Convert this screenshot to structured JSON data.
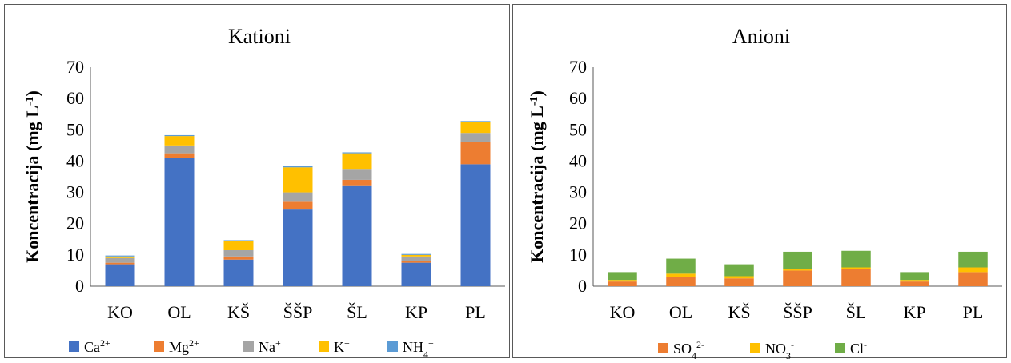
{
  "chart_data": [
    {
      "type": "bar",
      "stacked": true,
      "title": "Kationi",
      "ylabel": "Koncentracija (mg L-1)",
      "ylim": [
        0,
        70
      ],
      "yticks": [
        0,
        10,
        20,
        30,
        40,
        50,
        60,
        70
      ],
      "grid": false,
      "legend_position": "bottom",
      "categories": [
        "KO",
        "OL",
        "KŠ",
        "ŠŠP",
        "ŠL",
        "KP",
        "PL"
      ],
      "series": [
        {
          "name": "Ca2+",
          "color": "#4472C4",
          "values": [
            7,
            41,
            8.5,
            24.5,
            32,
            7.5,
            39
          ]
        },
        {
          "name": "Mg2+",
          "color": "#ED7D31",
          "values": [
            0.5,
            1.5,
            1,
            2.5,
            2,
            0.5,
            7
          ]
        },
        {
          "name": "Na+",
          "color": "#A5A5A5",
          "values": [
            1.5,
            2.5,
            2,
            3,
            3.5,
            1.5,
            3
          ]
        },
        {
          "name": "K+",
          "color": "#FFC000",
          "values": [
            0.5,
            3,
            3,
            8,
            5,
            0.5,
            3.5
          ]
        },
        {
          "name": "NH4+",
          "color": "#5B9BD5",
          "values": [
            0.3,
            0.3,
            0.2,
            0.5,
            0.3,
            0.3,
            0.3
          ]
        }
      ]
    },
    {
      "type": "bar",
      "stacked": true,
      "title": "Anioni",
      "ylabel": "Koncentracija (mg L-1)",
      "ylim": [
        0,
        70
      ],
      "yticks": [
        0,
        10,
        20,
        30,
        40,
        50,
        60,
        70
      ],
      "grid": false,
      "legend_position": "bottom",
      "categories": [
        "KO",
        "OL",
        "KŠ",
        "ŠŠP",
        "ŠL",
        "KP",
        "PL"
      ],
      "series": [
        {
          "name": "SO42-",
          "color": "#ED7D31",
          "values": [
            1.5,
            3,
            2.5,
            5,
            5.5,
            1.5,
            4.5
          ]
        },
        {
          "name": "NO3-",
          "color": "#FFC000",
          "values": [
            0.5,
            1,
            0.7,
            0.5,
            0.5,
            0.5,
            1.5
          ]
        },
        {
          "name": "Cl-",
          "color": "#70AD47",
          "values": [
            2.5,
            4.8,
            3.8,
            5.5,
            5.3,
            2.5,
            5
          ]
        }
      ]
    }
  ]
}
